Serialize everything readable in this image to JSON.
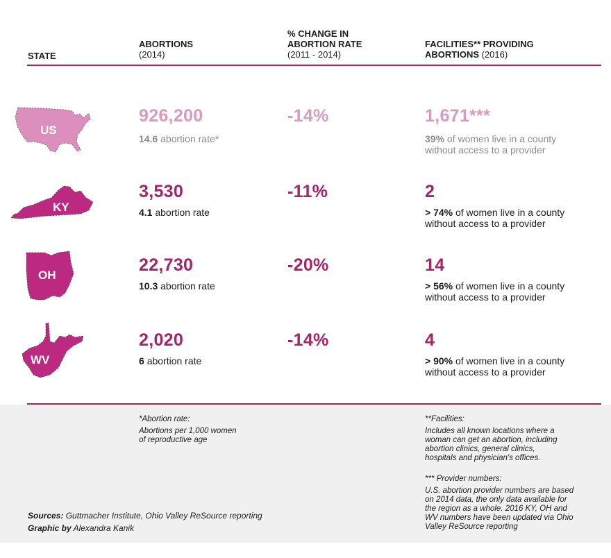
{
  "header": {
    "state": "STATE",
    "abortions": "ABORTIONS",
    "abortions_sub": "(2014)",
    "change_line1": "% CHANGE IN",
    "change_line2": "ABORTION RATE",
    "change_sub": "(2011 - 2014)",
    "facilities_line1": "FACILITIES** PROVIDING",
    "facilities_line2": "ABORTIONS",
    "facilities_sub": "(2016)"
  },
  "rows": [
    {
      "state": "US",
      "abortions": "926,200",
      "rate_value": "14.6",
      "rate_label": "abortion rate*",
      "change": "-14%",
      "facilities": "1,671***",
      "pct": "39%",
      "pct_text": "of women live in a county",
      "pct_text2": "without access to a provider"
    },
    {
      "state": "KY",
      "abortions": "3,530",
      "rate_value": "4.1",
      "rate_label": "abortion rate",
      "change": "-11%",
      "facilities": "2",
      "pct": "> 74%",
      "pct_text": "of women live in a county",
      "pct_text2": "without access to a provider"
    },
    {
      "state": "OH",
      "abortions": "22,730",
      "rate_value": "10.3",
      "rate_label": "abortion rate",
      "change": "-20%",
      "facilities": "14",
      "pct": "> 56%",
      "pct_text": "of women live in a county",
      "pct_text2": "without access to a provider"
    },
    {
      "state": "WV",
      "abortions": "2,020",
      "rate_value": "6",
      "rate_label": "abortion rate",
      "change": "-14%",
      "facilities": "4",
      "pct": "> 90%",
      "pct_text": "of women live in a county",
      "pct_text2": "without access to a provider"
    }
  ],
  "footnotes": {
    "rate_title": "*Abortion rate:",
    "rate_line1": "Abortions per 1,000 women",
    "rate_line2": "of reproductive age",
    "fac_title": "**Facilities:",
    "fac_line1": "Includes all known locations where a",
    "fac_line2": "woman can get an abortion, including",
    "fac_line3": "abortion clinics, general clinics,",
    "fac_line4": "hospitals and physician's offices.",
    "prov_title": "*** Provider numbers:",
    "prov_line1": "U.S. abortion provider numbers are based",
    "prov_line2": "on 2014 data, the only data available for",
    "prov_line3": "the region as a whole. 2016 KY, OH and",
    "prov_line4": "WV numbers have been updated via Ohio",
    "prov_line5": "Valley ReSource reporting"
  },
  "sources": {
    "label": "Sources:",
    "text": "Guttmacher Institute, Ohio Valley ReSource reporting",
    "graphic_label": "Graphic by",
    "graphic_text": "Alexandra Kanik"
  },
  "colors": {
    "us_fill": "#dc8fbd",
    "state_fill": "#bb2a80",
    "accent": "#a62368",
    "muted_text": "#d79ac0"
  },
  "chart_data": {
    "type": "table",
    "columns": [
      "STATE",
      "ABORTIONS (2014)",
      "% CHANGE IN ABORTION RATE (2011 - 2014)",
      "FACILITIES** PROVIDING ABORTIONS (2016)"
    ],
    "rows": [
      [
        "US",
        926200,
        -14,
        1671
      ],
      [
        "KY",
        3530,
        -11,
        2
      ],
      [
        "OH",
        22730,
        -20,
        14
      ],
      [
        "WV",
        2020,
        -14,
        4
      ]
    ]
  }
}
